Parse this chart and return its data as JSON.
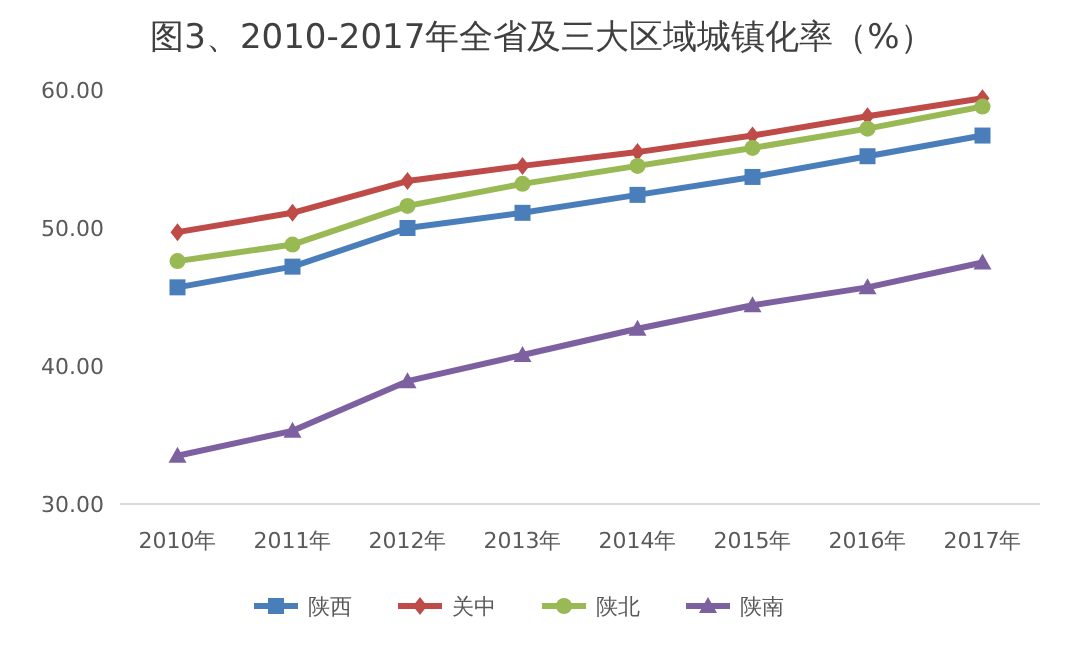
{
  "chart_data": {
    "type": "line",
    "title": "图3、2010-2017年全省及三大区域城镇化率（%）",
    "categories": [
      "2010年",
      "2011年",
      "2012年",
      "2013年",
      "2014年",
      "2015年",
      "2016年",
      "2017年"
    ],
    "series": [
      {
        "name": "陕西",
        "color": "#4a7ebb",
        "marker": "square",
        "values": [
          45.7,
          47.2,
          50.0,
          51.1,
          52.4,
          53.7,
          55.2,
          56.7
        ]
      },
      {
        "name": "关中",
        "color": "#be4b48",
        "marker": "diamond",
        "values": [
          49.7,
          51.1,
          53.4,
          54.5,
          55.5,
          56.7,
          58.1,
          59.4
        ]
      },
      {
        "name": "陕北",
        "color": "#98b954",
        "marker": "circle",
        "values": [
          47.6,
          48.8,
          51.6,
          53.2,
          54.5,
          55.8,
          57.2,
          58.8
        ]
      },
      {
        "name": "陕南",
        "color": "#7d60a0",
        "marker": "triangle",
        "values": [
          33.5,
          35.3,
          38.9,
          40.8,
          42.7,
          44.4,
          45.7,
          47.5
        ]
      }
    ],
    "ylim": [
      30,
      60
    ],
    "yticks": [
      {
        "value": 30,
        "label": "30.00"
      },
      {
        "value": 40,
        "label": "40.00"
      },
      {
        "value": 50,
        "label": "50.00"
      },
      {
        "value": 60,
        "label": "60.00"
      }
    ],
    "grid": false,
    "legend": "bottom"
  }
}
